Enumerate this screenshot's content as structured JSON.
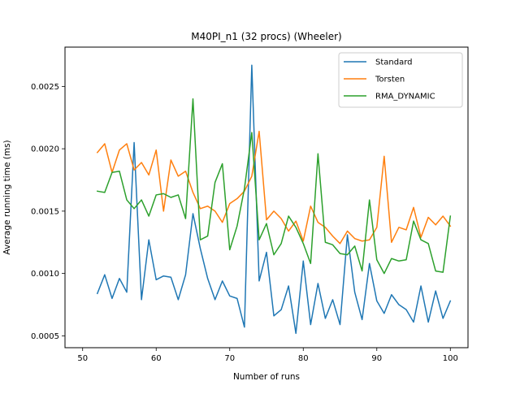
{
  "chart_data": {
    "type": "line",
    "title": "M40PI_n1 (32 procs) (Wheeler)",
    "xlabel": "Number of runs",
    "ylabel": "Average running time (ms)",
    "xlim": [
      47.6,
      102.4
    ],
    "ylim": [
      0.000405,
      0.002815
    ],
    "xticks": [
      50,
      60,
      70,
      80,
      90,
      100
    ],
    "xtick_labels": [
      "50",
      "60",
      "70",
      "80",
      "90",
      "100"
    ],
    "yticks": [
      0.0005,
      0.001,
      0.0015,
      0.002,
      0.0025
    ],
    "ytick_labels": [
      "0.0005",
      "0.0010",
      "0.0015",
      "0.0020",
      "0.0025"
    ],
    "grid": false,
    "legend_position": "top-right",
    "x": [
      52,
      53,
      54,
      55,
      56,
      57,
      58,
      59,
      60,
      61,
      62,
      63,
      64,
      65,
      66,
      67,
      68,
      69,
      70,
      71,
      72,
      73,
      74,
      75,
      76,
      77,
      78,
      79,
      80,
      81,
      82,
      83,
      84,
      85,
      86,
      87,
      88,
      89,
      90,
      91,
      92,
      93,
      94,
      95,
      96,
      97,
      98,
      99,
      100
    ],
    "series": [
      {
        "name": "Standard",
        "color": "#1f77b4",
        "values": [
          0.00084,
          0.00099,
          0.0008,
          0.00096,
          0.00085,
          0.00205,
          0.00079,
          0.00127,
          0.00095,
          0.00098,
          0.00097,
          0.00079,
          0.00099,
          0.00148,
          0.0012,
          0.00096,
          0.00079,
          0.00094,
          0.00082,
          0.0008,
          0.00057,
          0.00267,
          0.00094,
          0.00117,
          0.00066,
          0.00071,
          0.0009,
          0.00052,
          0.0011,
          0.00059,
          0.00092,
          0.00064,
          0.00079,
          0.00059,
          0.00131,
          0.00085,
          0.00063,
          0.00108,
          0.00078,
          0.00068,
          0.00083,
          0.00075,
          0.00071,
          0.00061,
          0.0009,
          0.00061,
          0.00086,
          0.00064,
          0.00078
        ]
      },
      {
        "name": "Torsten",
        "color": "#ff7f0e",
        "values": [
          0.00197,
          0.00204,
          0.00181,
          0.00199,
          0.00204,
          0.00183,
          0.00189,
          0.00179,
          0.00199,
          0.0015,
          0.00191,
          0.00178,
          0.00182,
          0.00165,
          0.00152,
          0.00154,
          0.0015,
          0.00141,
          0.00156,
          0.0016,
          0.00166,
          0.00178,
          0.00214,
          0.00143,
          0.0015,
          0.00144,
          0.00134,
          0.00142,
          0.00126,
          0.00154,
          0.00141,
          0.00137,
          0.0013,
          0.00124,
          0.00134,
          0.00128,
          0.00126,
          0.00127,
          0.00137,
          0.00194,
          0.00125,
          0.00137,
          0.00135,
          0.00153,
          0.00129,
          0.00145,
          0.00139,
          0.00146,
          0.00138
        ]
      },
      {
        "name": "RMA_DYNAMIC",
        "color": "#2ca02c",
        "values": [
          0.00166,
          0.00165,
          0.00181,
          0.00182,
          0.00159,
          0.00152,
          0.00159,
          0.00146,
          0.00163,
          0.00164,
          0.00161,
          0.00163,
          0.00144,
          0.0024,
          0.00127,
          0.0013,
          0.00173,
          0.00188,
          0.00119,
          0.00138,
          0.00168,
          0.00213,
          0.00127,
          0.0014,
          0.00115,
          0.00124,
          0.00146,
          0.00137,
          0.00124,
          0.00108,
          0.00196,
          0.00125,
          0.00123,
          0.00116,
          0.00115,
          0.00122,
          0.00102,
          0.00159,
          0.00111,
          0.001,
          0.00112,
          0.0011,
          0.00111,
          0.00142,
          0.00127,
          0.00124,
          0.00102,
          0.00101,
          0.00146
        ]
      }
    ]
  }
}
